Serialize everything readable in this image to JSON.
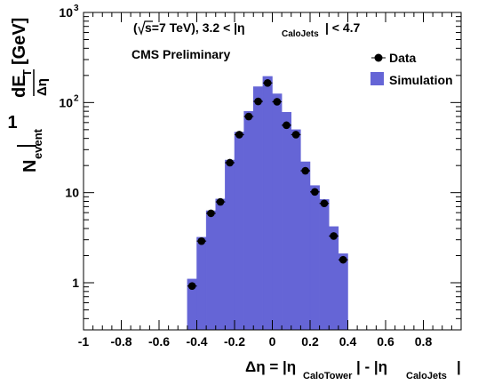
{
  "chart_data": {
    "type": "bar",
    "title": "",
    "annotations": {
      "energy_label": "s=7 TeV), 3.2 < |η",
      "energy_sub": "CaloJets",
      "energy_tail": "| < 4.7",
      "open_paren": "(",
      "cms_label": "CMS Preliminary"
    },
    "xlabel": {
      "main": "Δη = |η",
      "sub1": "CaloTower",
      "mid": "| - |η",
      "sub2": "CaloJets",
      "end": "|"
    },
    "ylabel": {
      "one": "1",
      "nevent": "N",
      "nevent_sub": "event",
      "de": "dE",
      "de_sub": "T",
      "deta": "Δη",
      "unit": "[GeV]"
    },
    "xlim": [
      -1.0,
      1.0
    ],
    "ylim": [
      0.3,
      1000
    ],
    "y_scale": "log",
    "x_ticks": [
      "-1",
      "-0.8",
      "-0.6",
      "-0.4",
      "-0.2",
      "0",
      "0.2",
      "0.4",
      "0.6",
      "0.8"
    ],
    "y_ticks": [
      {
        "value": 1,
        "label": "1"
      },
      {
        "value": 10,
        "label": "10"
      },
      {
        "value": 100,
        "label": "10",
        "exp": "2"
      },
      {
        "value": 1000,
        "label": "10",
        "exp": "3"
      }
    ],
    "legend": {
      "placement": "top-right",
      "entries": [
        "Data",
        "Simulation"
      ]
    },
    "colors": {
      "simulation_fill": "#6565d6",
      "data_marker": "#000000"
    },
    "bin_width": 0.05,
    "series": [
      {
        "name": "Simulation",
        "kind": "histogram",
        "x": [
          -0.425,
          -0.375,
          -0.325,
          -0.275,
          -0.225,
          -0.175,
          -0.125,
          -0.075,
          -0.025,
          0.025,
          0.075,
          0.125,
          0.175,
          0.225,
          0.275,
          0.325,
          0.375,
          0.425,
          0.475
        ],
        "values": [
          1.1,
          3.2,
          6.3,
          8.5,
          23,
          47,
          80,
          150,
          195,
          125,
          78,
          50,
          22,
          12,
          8.4,
          4.2,
          2.1,
          0,
          0
        ]
      },
      {
        "name": "Data",
        "kind": "points",
        "x": [
          -0.425,
          -0.375,
          -0.325,
          -0.275,
          -0.225,
          -0.175,
          -0.125,
          -0.075,
          -0.025,
          0.025,
          0.075,
          0.125,
          0.175,
          0.225,
          0.275,
          0.325,
          0.375,
          0.425,
          0.475
        ],
        "values": [
          0.92,
          2.9,
          5.9,
          7.9,
          21.5,
          44,
          70,
          103,
          165,
          102,
          56,
          44,
          17.5,
          10.2,
          7.6,
          3.3,
          1.8,
          0,
          0
        ]
      }
    ]
  }
}
